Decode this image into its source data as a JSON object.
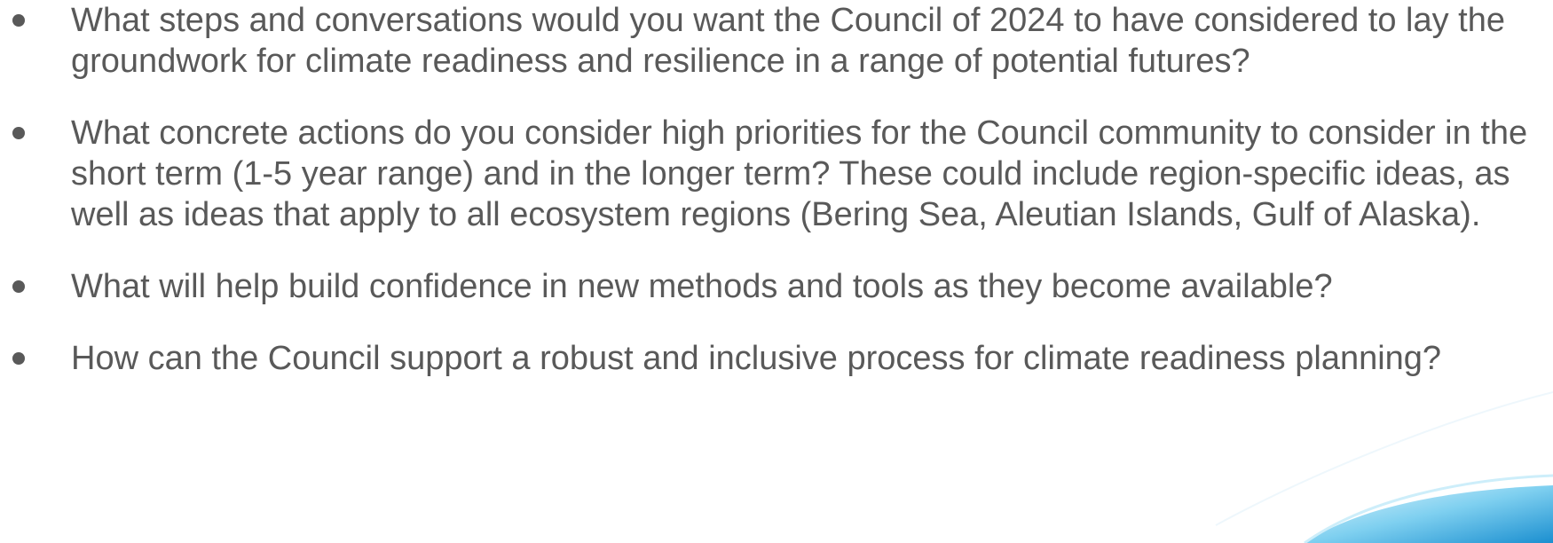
{
  "bullets": [
    "What steps and conversations would you want the Council of 2024 to have considered to lay the groundwork for climate readiness and resilience in a range of potential futures?",
    "What concrete actions do you consider high priorities for the Council community to consider in the short term (1-5 year range) and in the longer term? These could include region-specific ideas, as well as ideas that apply to all ecosystem regions (Bering Sea, Aleutian Islands, Gulf of Alaska).",
    "What will help build confidence in new methods and tools as they become available?",
    "How can the Council support a robust and inclusive process for climate readiness planning?"
  ]
}
